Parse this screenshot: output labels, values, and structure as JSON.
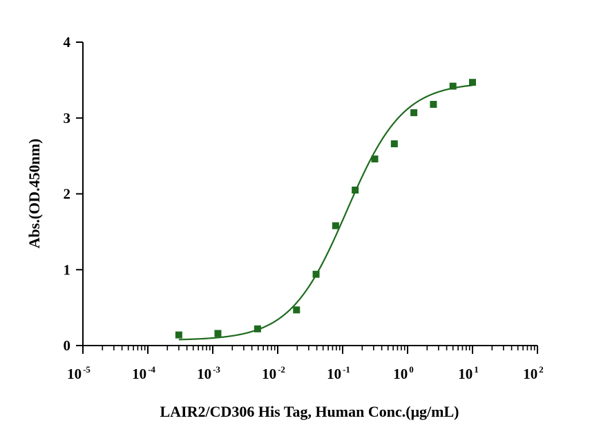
{
  "chart_data": {
    "type": "scatter",
    "title": "",
    "xlabel": "LAIR2/CD306 His Tag, Human Conc.(μg/mL)",
    "ylabel": "Abs.(OD.450nm)",
    "x_scale": "log10",
    "xlim": [
      1e-05,
      100
    ],
    "ylim": [
      0,
      4
    ],
    "x_ticks": [
      {
        "base": "10",
        "exp": "-5"
      },
      {
        "base": "10",
        "exp": "-4"
      },
      {
        "base": "10",
        "exp": "-3"
      },
      {
        "base": "10",
        "exp": "-2"
      },
      {
        "base": "10",
        "exp": "-1"
      },
      {
        "base": "10",
        "exp": "0"
      },
      {
        "base": "10",
        "exp": "1"
      },
      {
        "base": "10",
        "exp": "2"
      }
    ],
    "y_ticks": [
      "0",
      "1",
      "2",
      "3",
      "4"
    ],
    "grid": false,
    "legend": "none",
    "series": [
      {
        "marker": "square",
        "color": "#1e6b1e",
        "x": [
          0.0003,
          0.0012,
          0.0049,
          0.0195,
          0.039,
          0.078,
          0.156,
          0.3125,
          0.625,
          1.25,
          2.5,
          5,
          10
        ],
        "y": [
          0.14,
          0.16,
          0.22,
          0.47,
          0.94,
          1.58,
          2.05,
          2.46,
          2.66,
          3.07,
          3.18,
          3.42,
          3.47
        ]
      }
    ],
    "fit_curve": {
      "model": "4PL",
      "color": "#1e6b1e",
      "bottom": 0.07,
      "top": 3.47,
      "ec50": 0.115,
      "hill": 1.0,
      "x_range": [
        0.0003,
        10
      ]
    }
  }
}
